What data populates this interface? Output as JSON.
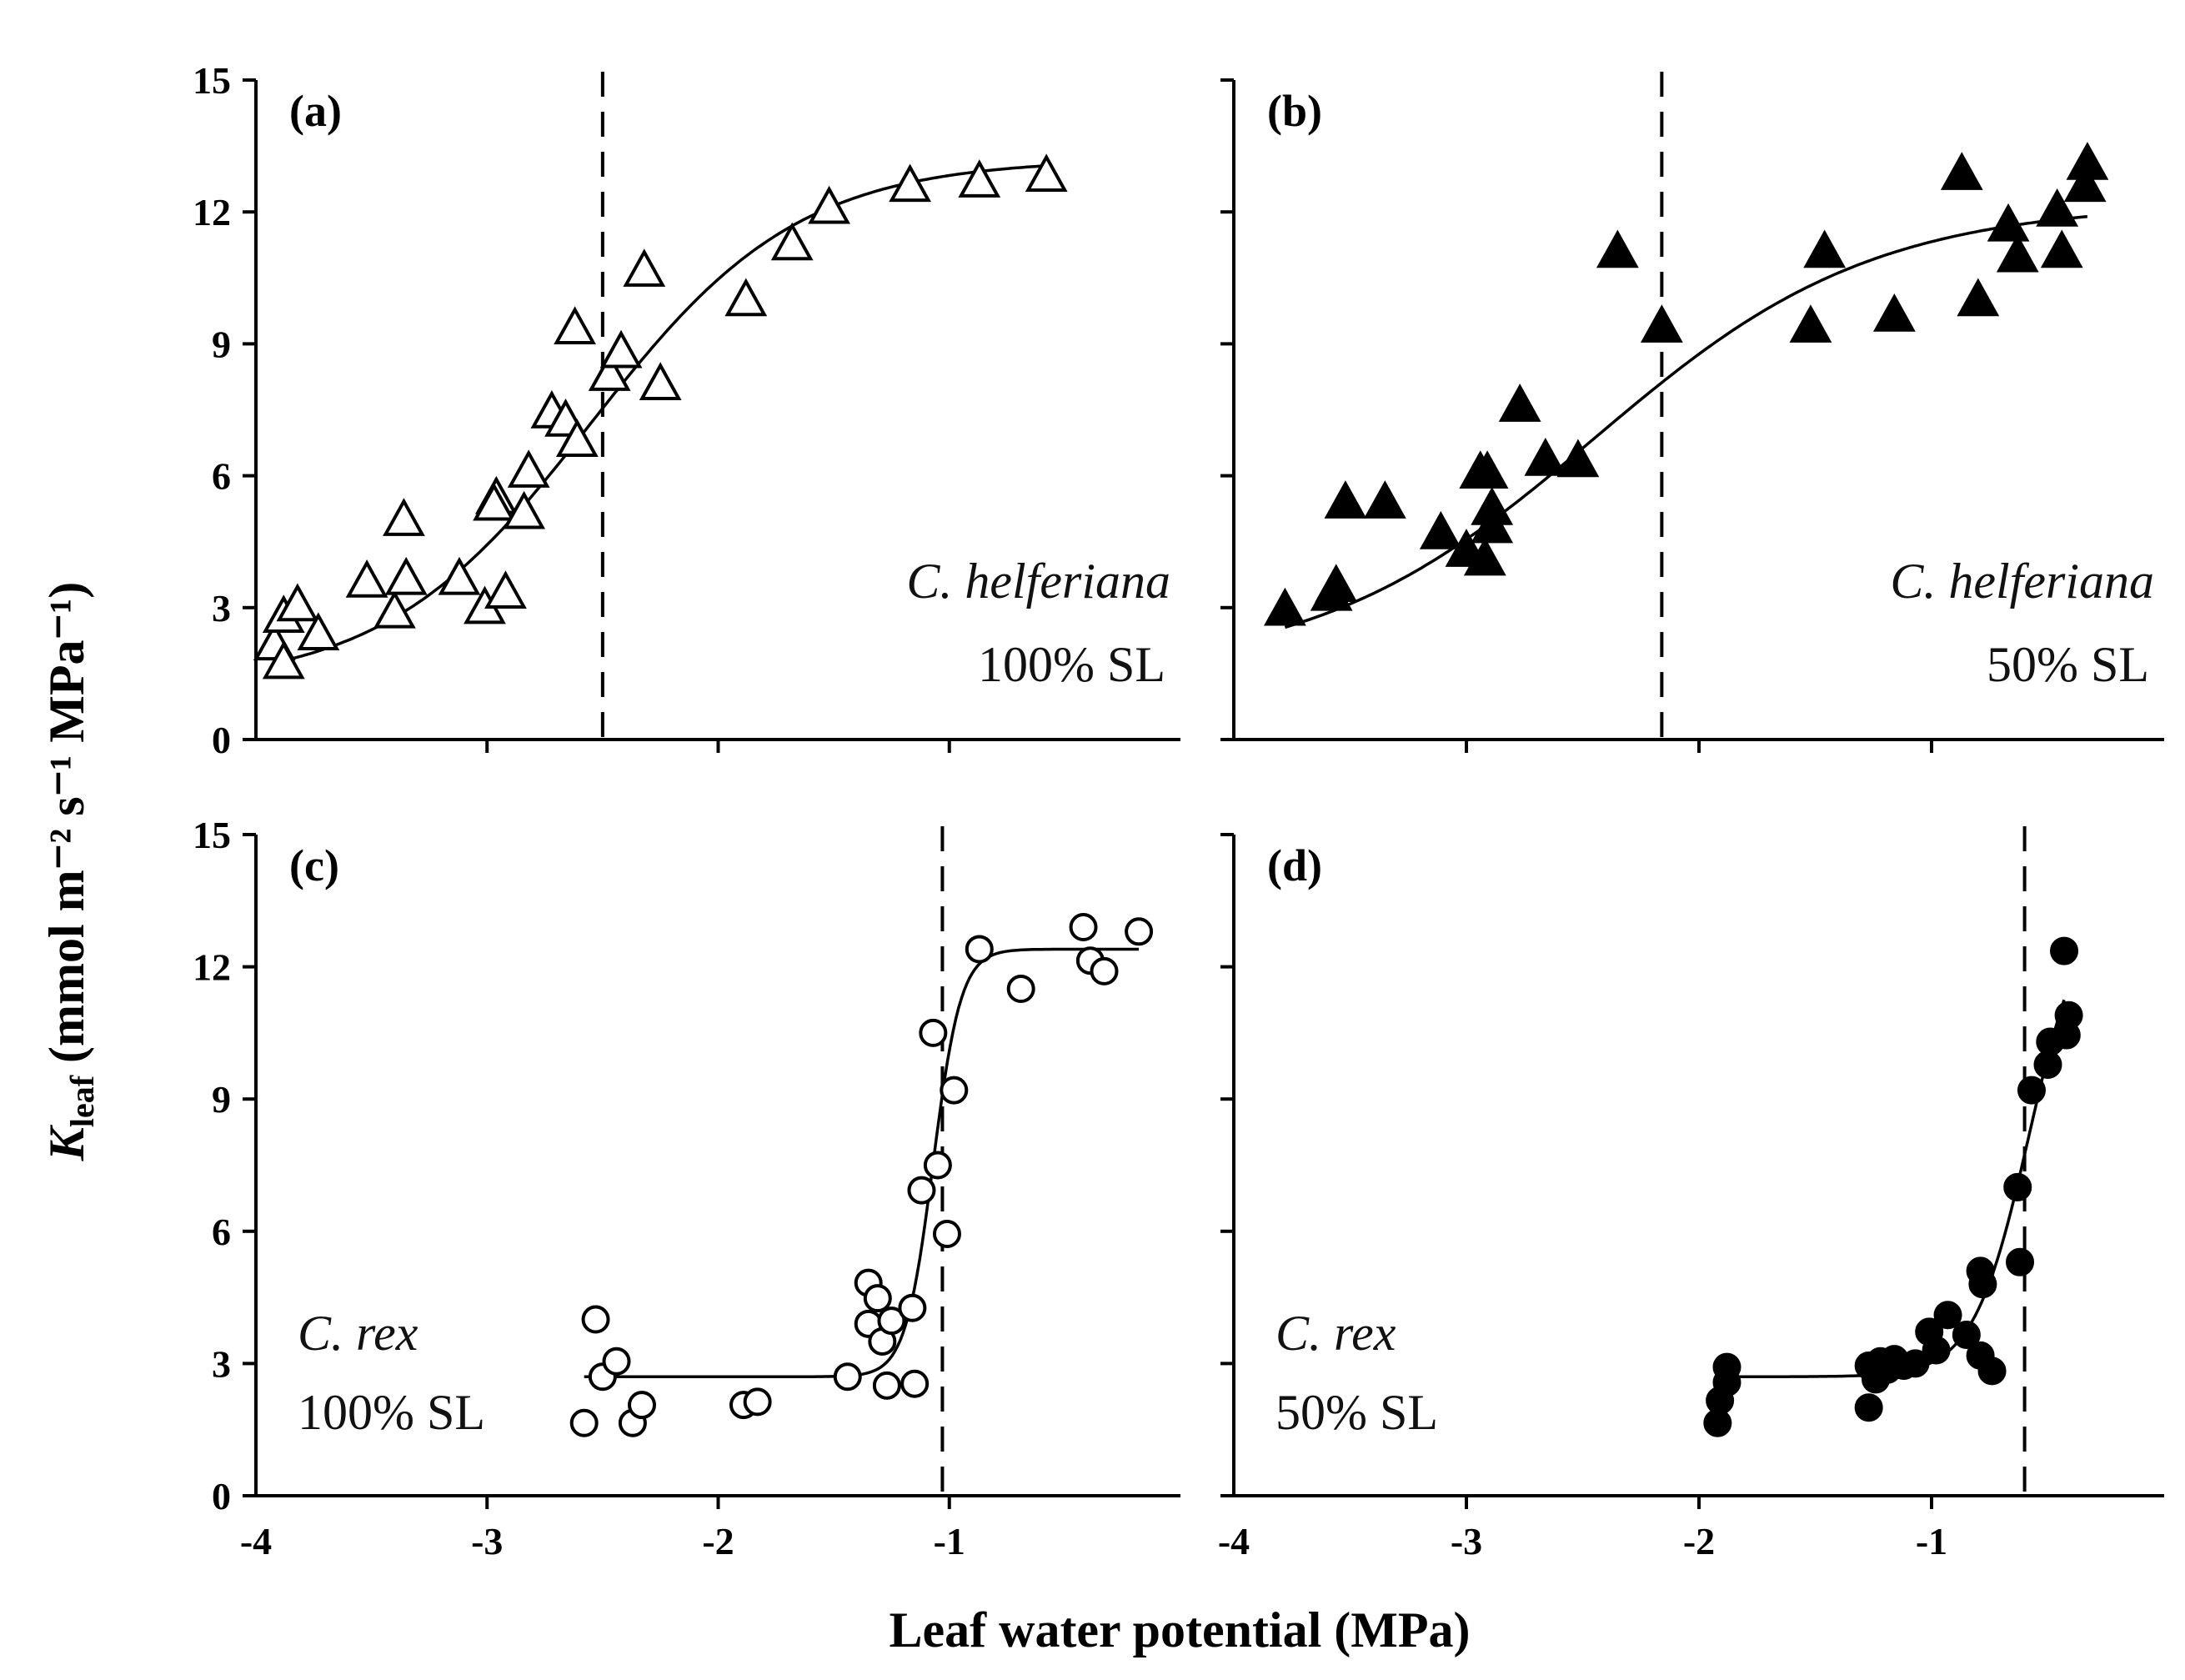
{
  "chart_data": {
    "type": "scatter",
    "xlabel": "Leaf water potential (MPa)",
    "ylabel": {
      "symbol": "K",
      "subscript": "leaf",
      "units": " (mmol m⁻² s⁻¹ MPa⁻¹)"
    },
    "xlim": [
      -4,
      0
    ],
    "ylim": [
      0,
      15
    ],
    "xticks": [
      -4,
      -3,
      -2,
      -1
    ],
    "xtick_labels": [
      "-4",
      "-3",
      "-2",
      "-1"
    ],
    "yticks": [
      0,
      3,
      6,
      9,
      12,
      15
    ],
    "ytick_labels": [
      "0",
      "3",
      "6",
      "9",
      "12",
      "15"
    ],
    "grid": false,
    "panels": [
      {
        "label": "(a)",
        "species": "C. helferiana",
        "treatment": "100% SL",
        "marker": "triangle-open",
        "dashed_x": -2.5,
        "fit": {
          "type": "sigmoid",
          "base": 1.2,
          "amplitude": 12.0,
          "x50": -2.55,
          "slope": 0.45,
          "x_range": [
            -3.92,
            -0.58
          ]
        },
        "points": [
          [
            -3.92,
            2.17
          ],
          [
            -3.88,
            2.8
          ],
          [
            -3.88,
            1.75
          ],
          [
            -3.82,
            3.06
          ],
          [
            -3.73,
            2.4
          ],
          [
            -3.52,
            3.6
          ],
          [
            -3.4,
            2.9
          ],
          [
            -3.36,
            5.0
          ],
          [
            -3.35,
            3.66
          ],
          [
            -3.12,
            3.66
          ],
          [
            -3.01,
            3.0
          ],
          [
            -2.96,
            5.5
          ],
          [
            -2.97,
            5.35
          ],
          [
            -2.92,
            3.35
          ],
          [
            -2.84,
            5.16
          ],
          [
            -2.82,
            6.1
          ],
          [
            -2.72,
            7.45
          ],
          [
            -2.66,
            7.26
          ],
          [
            -2.62,
            9.36
          ],
          [
            -2.61,
            6.8
          ],
          [
            -2.47,
            8.3
          ],
          [
            -2.42,
            8.82
          ],
          [
            -2.32,
            10.67
          ],
          [
            -2.25,
            8.09
          ],
          [
            -1.88,
            10.0
          ],
          [
            -1.68,
            11.27
          ],
          [
            -1.52,
            12.1
          ],
          [
            -1.17,
            12.6
          ],
          [
            -0.87,
            12.7
          ],
          [
            -0.58,
            12.83
          ]
        ]
      },
      {
        "label": "(b)",
        "species": "C. helferiana",
        "treatment": "50% SL",
        "marker": "triangle-filled",
        "dashed_x": -2.16,
        "fit": {
          "type": "sigmoid",
          "base": 1.5,
          "amplitude": 10.7,
          "x50": -2.45,
          "slope": 0.6,
          "x_range": [
            -3.78,
            -0.33
          ]
        },
        "points": [
          [
            -3.78,
            2.96
          ],
          [
            -3.58,
            3.3
          ],
          [
            -3.56,
            3.5
          ],
          [
            -3.52,
            5.4
          ],
          [
            -3.35,
            5.4
          ],
          [
            -3.11,
            4.7
          ],
          [
            -3.0,
            4.3
          ],
          [
            -2.94,
            6.08
          ],
          [
            -2.92,
            4.1
          ],
          [
            -2.91,
            6.08
          ],
          [
            -2.89,
            4.84
          ],
          [
            -2.89,
            5.25
          ],
          [
            -2.77,
            7.6
          ],
          [
            -2.66,
            6.37
          ],
          [
            -2.52,
            6.34
          ],
          [
            -2.35,
            11.1
          ],
          [
            -2.16,
            9.4
          ],
          [
            -1.52,
            9.4
          ],
          [
            -1.46,
            11.1
          ],
          [
            -1.16,
            9.65
          ],
          [
            -0.87,
            12.87
          ],
          [
            -0.8,
            10.0
          ],
          [
            -0.67,
            11.7
          ],
          [
            -0.63,
            11.0
          ],
          [
            -0.46,
            12.04
          ],
          [
            -0.44,
            11.1
          ],
          [
            -0.34,
            12.6
          ],
          [
            -0.33,
            13.1
          ]
        ]
      },
      {
        "label": "(c)",
        "species": "C. rex",
        "treatment": "100% SL",
        "marker": "circle-open",
        "dashed_x": -1.03,
        "fit": {
          "type": "sigmoid",
          "base": 2.7,
          "amplitude": 9.7,
          "x50": -1.07,
          "slope": 0.06,
          "x_range": [
            -2.58,
            -0.18
          ]
        },
        "points": [
          [
            -2.58,
            1.65
          ],
          [
            -2.53,
            4.0
          ],
          [
            -2.5,
            2.7
          ],
          [
            -2.44,
            3.05
          ],
          [
            -2.37,
            1.65
          ],
          [
            -2.33,
            2.06
          ],
          [
            -1.89,
            2.06
          ],
          [
            -1.83,
            2.13
          ],
          [
            -1.44,
            2.7
          ],
          [
            -1.35,
            4.83
          ],
          [
            -1.35,
            3.9
          ],
          [
            -1.31,
            4.48
          ],
          [
            -1.29,
            3.5
          ],
          [
            -1.27,
            2.5
          ],
          [
            -1.25,
            3.97
          ],
          [
            -1.16,
            4.26
          ],
          [
            -1.15,
            2.54
          ],
          [
            -1.12,
            6.93
          ],
          [
            -1.07,
            10.5
          ],
          [
            -1.05,
            7.5
          ],
          [
            -1.01,
            5.94
          ],
          [
            -0.98,
            9.2
          ],
          [
            -0.87,
            12.4
          ],
          [
            -0.69,
            11.5
          ],
          [
            -0.42,
            12.9
          ],
          [
            -0.39,
            12.14
          ],
          [
            -0.33,
            11.9
          ],
          [
            -0.18,
            12.8
          ]
        ]
      },
      {
        "label": "(d)",
        "species": "C. rex",
        "treatment": "50% SL",
        "marker": "circle-filled",
        "dashed_x": -0.6,
        "fit": {
          "type": "sigmoid",
          "base": 2.7,
          "amplitude": 11.0,
          "x50": -0.58,
          "slope": 0.12,
          "x_range": [
            -1.9,
            -0.43
          ]
        },
        "points": [
          [
            -1.92,
            1.65
          ],
          [
            -1.91,
            2.16
          ],
          [
            -1.88,
            2.57
          ],
          [
            -1.88,
            2.92
          ],
          [
            -1.27,
            2.0
          ],
          [
            -1.27,
            2.95
          ],
          [
            -1.24,
            2.64
          ],
          [
            -1.22,
            3.05
          ],
          [
            -1.19,
            2.86
          ],
          [
            -1.16,
            3.1
          ],
          [
            -1.12,
            2.95
          ],
          [
            -1.07,
            3.0
          ],
          [
            -1.01,
            3.72
          ],
          [
            -0.93,
            4.1
          ],
          [
            -0.98,
            3.3
          ],
          [
            -0.85,
            3.65
          ],
          [
            -0.79,
            5.1
          ],
          [
            -0.78,
            4.8
          ],
          [
            -0.79,
            3.18
          ],
          [
            -0.74,
            2.83
          ],
          [
            -0.62,
            5.3
          ],
          [
            -0.63,
            7.0
          ],
          [
            -0.57,
            9.2
          ],
          [
            -0.5,
            9.78
          ],
          [
            -0.49,
            10.3
          ],
          [
            -0.42,
            10.45
          ],
          [
            -0.41,
            10.9
          ],
          [
            -0.43,
            12.36
          ]
        ]
      }
    ]
  }
}
